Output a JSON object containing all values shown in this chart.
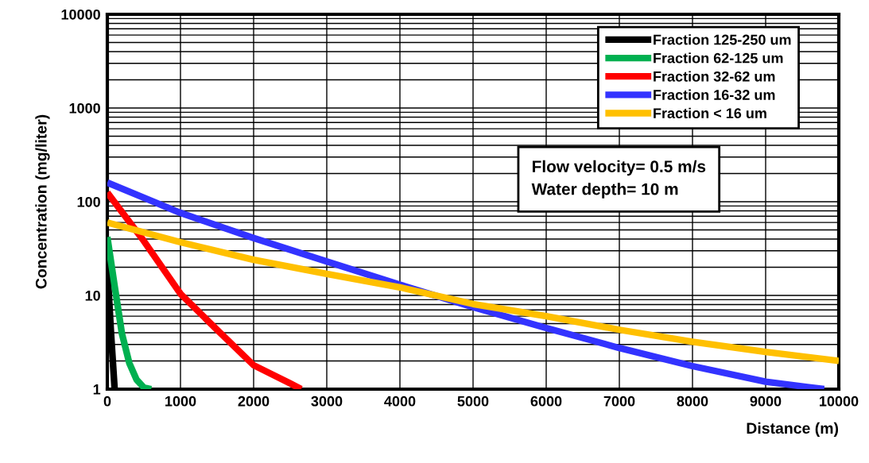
{
  "chart_data": {
    "type": "line",
    "xlabel": "Distance (m)",
    "ylabel": "Concentration (mg/liter)",
    "log": "y",
    "grid": true,
    "legend": "top right",
    "marker": "none",
    "line_style": "solid",
    "xlim": [
      0,
      10000
    ],
    "xticks": [
      0,
      1000,
      2000,
      3000,
      4000,
      5000,
      6000,
      7000,
      8000,
      9000,
      10000
    ],
    "ylim": [
      1,
      10000
    ],
    "yticks": [
      1,
      10,
      100,
      1000,
      10000
    ],
    "annotations": [
      "Flow velocity= 0.5 m/s\nWater depth= 10 m"
    ],
    "series": [
      {
        "name": "Fraction 125-250 um",
        "color": "#000000",
        "x": [
          0,
          50,
          100
        ],
        "values": [
          20,
          4,
          1
        ]
      },
      {
        "name": "Fraction 62-125 um",
        "color": "#00b050",
        "x": [
          0,
          100,
          200,
          300,
          400,
          500,
          600
        ],
        "values": [
          42,
          12.6,
          3.9,
          1.9,
          1.26,
          1.04,
          1
        ]
      },
      {
        "name": "Fraction 32-62 um",
        "color": "#ff0000",
        "x": [
          0,
          500,
          1000,
          1500,
          2000,
          2500,
          2650
        ],
        "values": [
          125,
          38,
          10.4,
          4.3,
          1.8,
          1.15,
          1
        ]
      },
      {
        "name": "Fraction 16-32 um",
        "color": "#3333ff",
        "x": [
          0,
          1000,
          2000,
          3000,
          4000,
          5000,
          6000,
          7000,
          8000,
          9000,
          9800
        ],
        "values": [
          160,
          76,
          41,
          23,
          13,
          7.5,
          4.5,
          2.75,
          1.76,
          1.2,
          1
        ]
      },
      {
        "name": "Fraction < 16 um",
        "color": "#ffc000",
        "x": [
          0,
          1000,
          2000,
          3000,
          4000,
          5000,
          6000,
          7000,
          8000,
          9000,
          10000
        ],
        "values": [
          60,
          37,
          24,
          17,
          12.2,
          8.1,
          6,
          4.3,
          3.2,
          2.5,
          2
        ]
      }
    ]
  }
}
